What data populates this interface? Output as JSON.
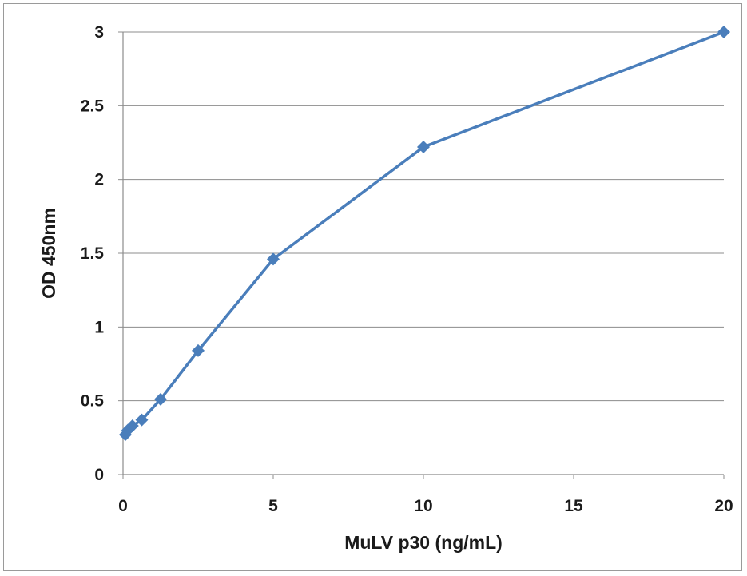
{
  "chart_data": {
    "type": "line",
    "title": "",
    "xlabel": "MuLV p30 (ng/mL)",
    "ylabel": "OD 450nm",
    "xlim": [
      0,
      20
    ],
    "ylim": [
      0,
      3
    ],
    "xticks": [
      0,
      5,
      10,
      15,
      20
    ],
    "yticks": [
      0,
      0.5,
      1,
      1.5,
      2,
      2.5,
      3
    ],
    "xtick_labels": [
      "0",
      "5",
      "10",
      "15",
      "20"
    ],
    "ytick_labels": [
      "0",
      "0.5",
      "1",
      "1.5",
      "2",
      "2.5",
      "3"
    ],
    "grid": "horizontal",
    "legend": "none",
    "marker": "diamond",
    "color": "#4a7ebb",
    "series": [
      {
        "x": [
          0.078,
          0.156,
          0.313,
          0.625,
          1.25,
          2.5,
          5,
          10,
          20
        ],
        "y": [
          0.27,
          0.3,
          0.33,
          0.37,
          0.51,
          0.84,
          1.46,
          2.22,
          3.0
        ]
      }
    ]
  }
}
